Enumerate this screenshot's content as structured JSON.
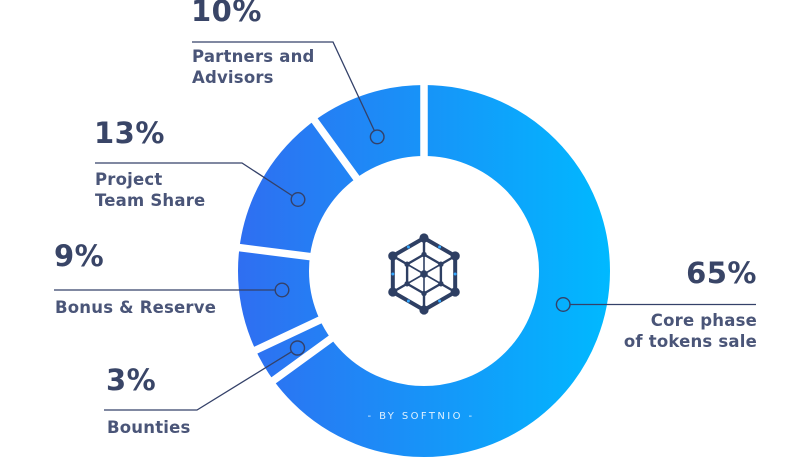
{
  "page": {
    "background": "#ffffff"
  },
  "brand": {
    "credit_text": "- BY SOFTNIO -",
    "logo_icon": "hex-cube-network-icon"
  },
  "chart_data": {
    "type": "pie",
    "donut": true,
    "title": "",
    "unit": "%",
    "start_angle_deg": 0,
    "direction": "clockwise",
    "legend_position": "callouts-around-chart",
    "slices": [
      {
        "label": "Core phase of tokens sale",
        "value": 65
      },
      {
        "label": "Bounties",
        "value": 3
      },
      {
        "label": "Bonus & Reserve",
        "value": 9
      },
      {
        "label": "Project Team Share",
        "value": 13
      },
      {
        "label": "Partners and Advisors",
        "value": 10
      }
    ],
    "gradient": {
      "from": "#2f6ef1",
      "to": "#00b9ff",
      "direction": "left-to-right"
    },
    "colors": {
      "percent_text": "#394567",
      "label_text": "#4a5578",
      "callout_line": "#344169",
      "logo_navy": "#2e3f63",
      "logo_accent": "#35a8ff",
      "credit_text": "#eaf7ff"
    }
  },
  "callouts": {
    "partners": {
      "pct": "10%",
      "lines": [
        "Partners and",
        "Advisors"
      ]
    },
    "team": {
      "pct": "13%",
      "lines": [
        "Project",
        "Team Share"
      ]
    },
    "bonus": {
      "pct": "9%",
      "lines": [
        "Bonus & Reserve"
      ]
    },
    "bounties": {
      "pct": "3%",
      "lines": [
        "Bounties"
      ]
    },
    "core": {
      "pct": "65%",
      "lines": [
        "Core phase",
        "of tokens sale"
      ]
    }
  }
}
